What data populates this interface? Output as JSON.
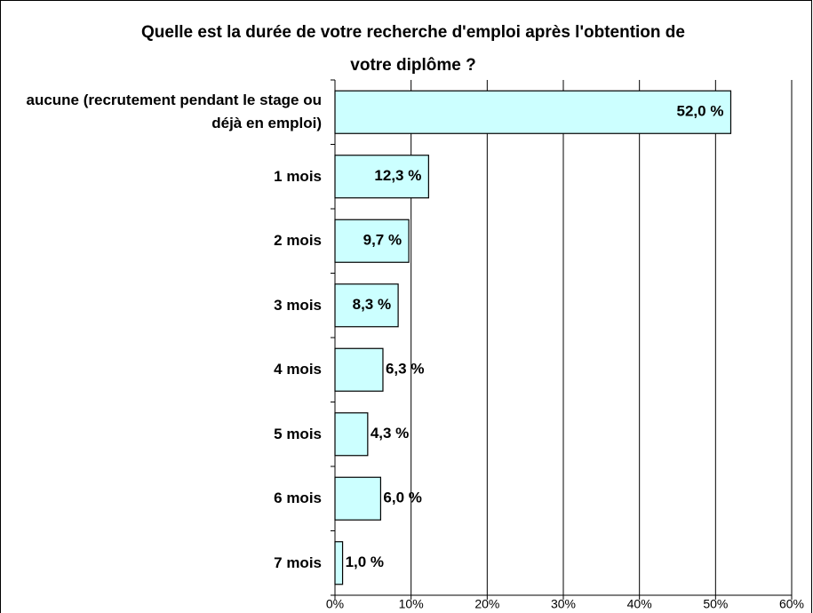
{
  "chart_data": {
    "type": "bar",
    "orientation": "horizontal",
    "title": "Quelle est la durée de votre recherche d'emploi après l'obtention de votre diplôme ?",
    "categories": [
      "aucune (recrutement pendant le stage ou déjà en emploi)",
      "1 mois",
      "2 mois",
      "3 mois",
      "4 mois",
      "5 mois",
      "6 mois",
      "7 mois"
    ],
    "values": [
      52.0,
      12.3,
      9.7,
      8.3,
      6.3,
      4.3,
      6.0,
      1.0
    ],
    "value_labels": [
      "52,0 %",
      "12,3 %",
      "9,7 %",
      "8,3 %",
      "6,3 %",
      "4,3 %",
      "6,0 %",
      "1,0 %"
    ],
    "color": "#ccffff",
    "xlim": [
      0,
      60
    ],
    "xticks": [
      {
        "value": 0,
        "label": "0%"
      },
      {
        "value": 10,
        "label": "10%"
      },
      {
        "value": 20,
        "label": "20%"
      },
      {
        "value": 30,
        "label": "30%"
      },
      {
        "value": 40,
        "label": "40%"
      },
      {
        "value": 50,
        "label": "50%"
      },
      {
        "value": 60,
        "label": "60%"
      }
    ],
    "grid": true
  }
}
